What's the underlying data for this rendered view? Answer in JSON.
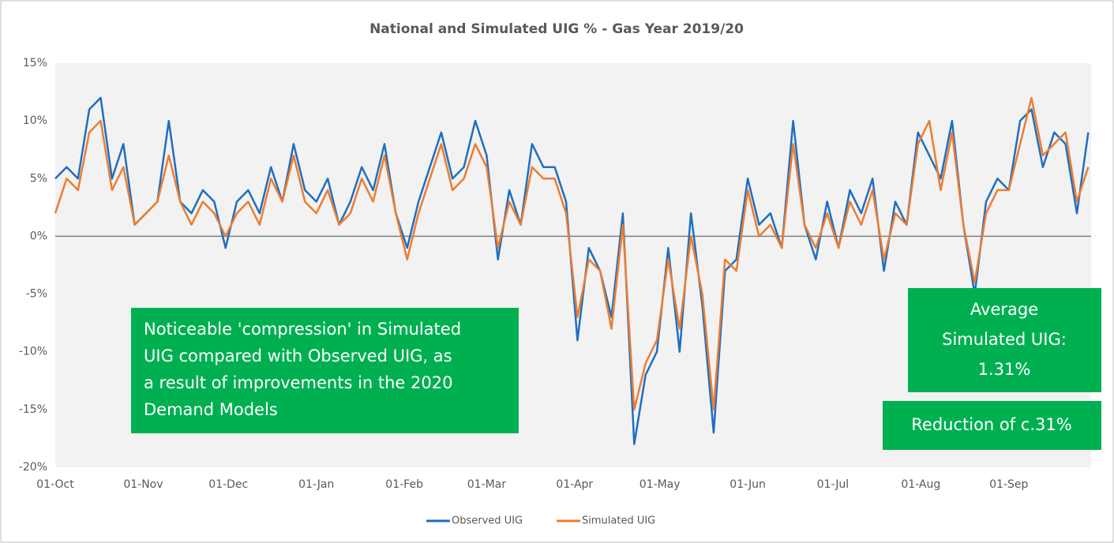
{
  "chart_data": {
    "type": "line",
    "title": "National and Simulated UIG % - Gas Year 2019/20",
    "x": [
      0,
      4,
      8,
      12,
      16,
      20,
      24,
      28,
      32,
      36,
      40,
      44,
      48,
      52,
      56,
      60,
      64,
      68,
      72,
      76,
      80,
      84,
      88,
      92,
      96,
      100,
      104,
      108,
      112,
      116,
      120,
      124,
      128,
      132,
      136,
      140,
      144,
      148,
      152,
      156,
      160,
      164,
      168,
      172,
      176,
      180,
      184,
      188,
      192,
      196,
      200,
      204,
      208,
      212,
      216,
      220,
      224,
      228,
      232,
      236,
      240,
      244,
      248,
      252,
      256,
      260,
      264,
      268,
      272,
      276,
      280,
      284,
      288,
      292,
      296,
      300,
      304,
      308,
      312,
      316,
      320,
      324,
      328,
      332,
      336,
      340,
      344,
      348,
      352,
      356,
      360,
      364
    ],
    "xlim": [
      0,
      365
    ],
    "xticks": [
      {
        "value": 0,
        "label": "01-Oct"
      },
      {
        "value": 31,
        "label": "01-Nov"
      },
      {
        "value": 61,
        "label": "01-Dec"
      },
      {
        "value": 92,
        "label": "01-Jan"
      },
      {
        "value": 123,
        "label": "01-Feb"
      },
      {
        "value": 152,
        "label": "01-Mar"
      },
      {
        "value": 183,
        "label": "01-Apr"
      },
      {
        "value": 213,
        "label": "01-May"
      },
      {
        "value": 244,
        "label": "01-Jun"
      },
      {
        "value": 274,
        "label": "01-Jul"
      },
      {
        "value": 305,
        "label": "01-Aug"
      },
      {
        "value": 336,
        "label": "01-Sep"
      }
    ],
    "ylim": [
      -20,
      15
    ],
    "yticks": [
      {
        "value": -20,
        "label": "-20%"
      },
      {
        "value": -15,
        "label": "-15%"
      },
      {
        "value": -10,
        "label": "-10%"
      },
      {
        "value": -5,
        "label": "-5%"
      },
      {
        "value": 0,
        "label": "0%"
      },
      {
        "value": 5,
        "label": "5%"
      },
      {
        "value": 10,
        "label": "10%"
      },
      {
        "value": 15,
        "label": "15%"
      }
    ],
    "grid": false,
    "legend": "bottom",
    "series": [
      {
        "name": "Observed UIG",
        "color": "#1f6fbf",
        "values": [
          5,
          6,
          5,
          11,
          12,
          5,
          8,
          1,
          2,
          3,
          10,
          3,
          2,
          4,
          3,
          -1,
          3,
          4,
          2,
          6,
          3,
          8,
          4,
          3,
          5,
          1,
          3,
          6,
          4,
          8,
          2,
          -1,
          3,
          6,
          9,
          5,
          6,
          10,
          7,
          -2,
          4,
          1,
          8,
          6,
          6,
          3,
          -9,
          -1,
          -3,
          -7,
          2,
          -18,
          -12,
          -10,
          -1,
          -10,
          2,
          -6,
          -17,
          -3,
          -2,
          5,
          1,
          2,
          -1,
          10,
          1,
          -2,
          3,
          -1,
          4,
          2,
          5,
          -3,
          3,
          1,
          9,
          7,
          5,
          10,
          1,
          -5,
          3,
          5,
          4,
          10,
          11,
          6,
          9,
          8,
          2,
          9
        ]
      },
      {
        "name": "Simulated UIG",
        "color": "#ed7d31",
        "values": [
          2,
          5,
          4,
          9,
          10,
          4,
          6,
          1,
          2,
          3,
          7,
          3,
          1,
          3,
          2,
          0,
          2,
          3,
          1,
          5,
          3,
          7,
          3,
          2,
          4,
          1,
          2,
          5,
          3,
          7,
          2,
          -2,
          2,
          5,
          8,
          4,
          5,
          8,
          6,
          -1,
          3,
          1,
          6,
          5,
          5,
          2,
          -7,
          -2,
          -3,
          -8,
          1,
          -15,
          -11,
          -9,
          -2,
          -8,
          0,
          -5,
          -15,
          -2,
          -3,
          4,
          0,
          1,
          -1,
          8,
          1,
          -1,
          2,
          -1,
          3,
          1,
          4,
          -2,
          2,
          1,
          8,
          10,
          4,
          9,
          1,
          -4,
          2,
          4,
          4,
          8,
          12,
          7,
          8,
          9,
          3,
          6
        ]
      }
    ],
    "annotations": [
      {
        "color": "#00b050",
        "text": [
          "Noticeable 'compression' in Simulated",
          "UIG compared with Observed UIG, as",
          "a result of improvements in the 2020",
          "Demand Models"
        ]
      },
      {
        "color": "#00b050",
        "text": [
          "Average",
          "Simulated UIG:",
          "1.31%"
        ]
      },
      {
        "color": "#00b050",
        "text": [
          "Reduction of c.31%"
        ]
      }
    ]
  }
}
